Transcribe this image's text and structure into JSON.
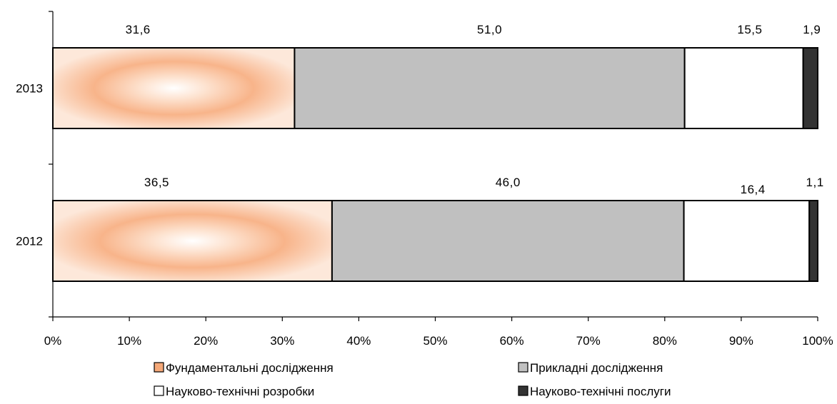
{
  "chart_data": {
    "type": "bar",
    "orientation": "horizontal",
    "stacked": "percent",
    "categories": [
      "2013",
      "2012"
    ],
    "series": [
      {
        "name": "Фундаментальні дослідження",
        "values": [
          31.6,
          36.5
        ],
        "labels": [
          "31,6",
          "36,5"
        ],
        "color": "#f4a878",
        "fill": "gradient"
      },
      {
        "name": "Прикладні дослідження",
        "values": [
          51.0,
          46.0
        ],
        "labels": [
          "51,0",
          "46,0"
        ],
        "color": "#c0c0c0"
      },
      {
        "name": "Науково-технічні розробки",
        "values": [
          15.5,
          16.4
        ],
        "labels": [
          "15,5",
          "16,4"
        ],
        "color": "#ffffff"
      },
      {
        "name": "Науково-технічні послуги",
        "values": [
          1.9,
          1.1
        ],
        "labels": [
          "1,9",
          "1,1"
        ],
        "color": "#333333"
      }
    ],
    "xlim": [
      0,
      100
    ],
    "xticks": [
      "0%",
      "10%",
      "20%",
      "30%",
      "40%",
      "50%",
      "60%",
      "70%",
      "80%",
      "90%",
      "100%"
    ],
    "grid": false,
    "legend": "bottom",
    "title": "",
    "xlabel": "",
    "ylabel": ""
  }
}
